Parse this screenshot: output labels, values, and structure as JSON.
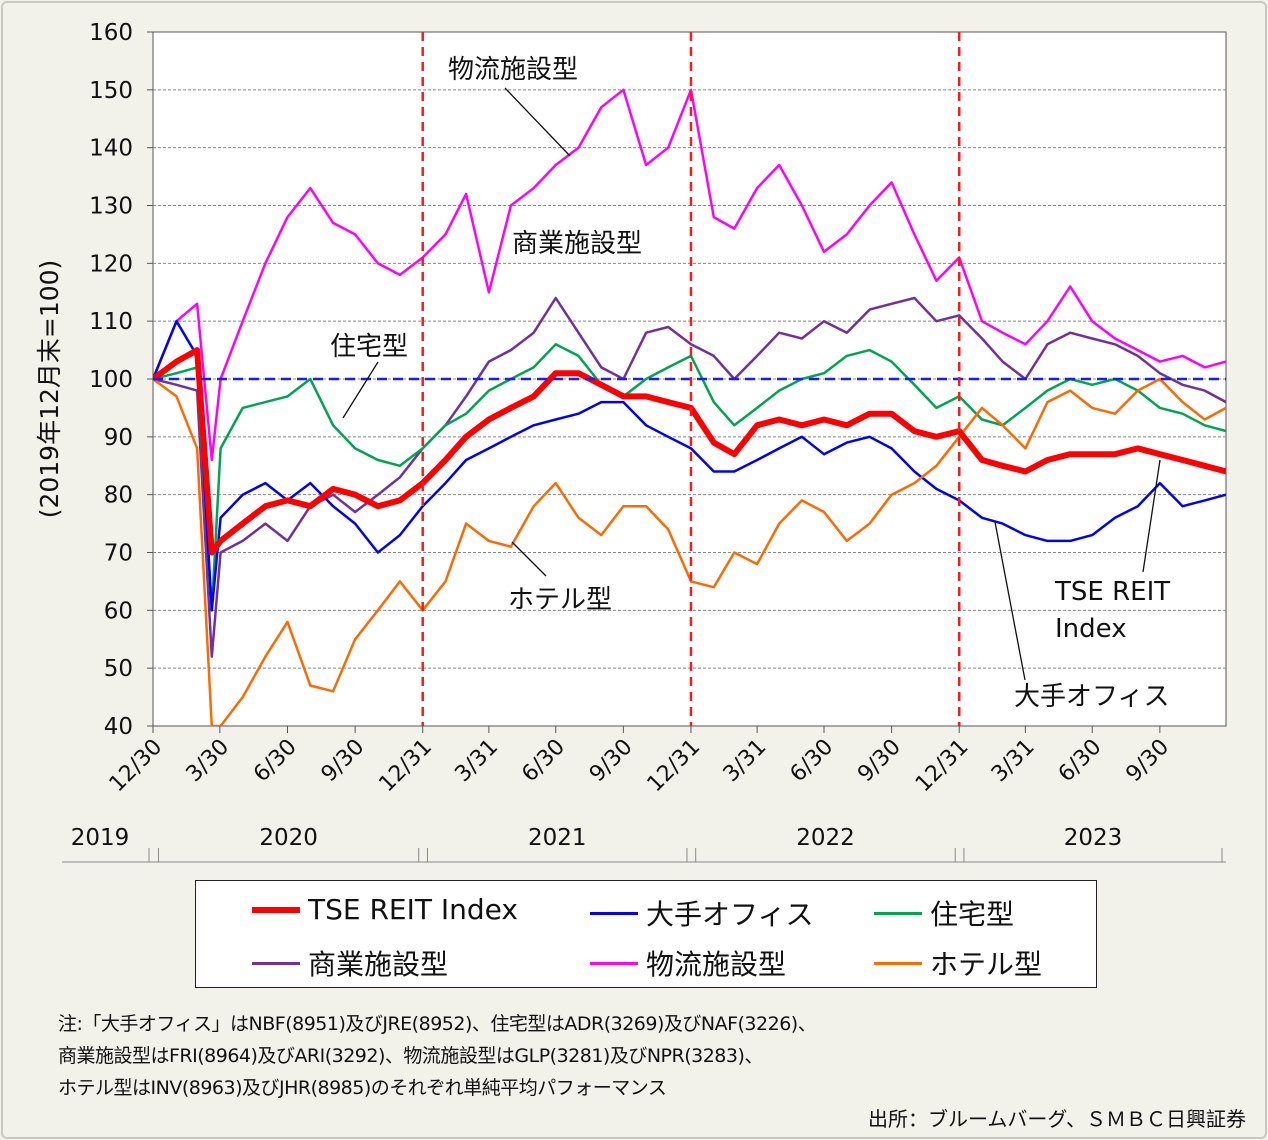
{
  "chart_data": {
    "type": "line",
    "ylabel": "(2019年12月末=100)",
    "ylim": [
      40,
      160
    ],
    "yticks": [
      40,
      50,
      60,
      70,
      80,
      90,
      100,
      110,
      120,
      130,
      140,
      150,
      160
    ],
    "xlim": [
      "2019-12-30",
      "2023-12-29"
    ],
    "xticks": [
      {
        "date": "2019-12-30",
        "label": "12/30"
      },
      {
        "date": "2020-03-30",
        "label": "3/30"
      },
      {
        "date": "2020-06-30",
        "label": "6/30"
      },
      {
        "date": "2020-09-30",
        "label": "9/30"
      },
      {
        "date": "2020-12-31",
        "label": "12/31"
      },
      {
        "date": "2021-03-31",
        "label": "3/31"
      },
      {
        "date": "2021-06-30",
        "label": "6/30"
      },
      {
        "date": "2021-09-30",
        "label": "9/30"
      },
      {
        "date": "2021-12-31",
        "label": "12/31"
      },
      {
        "date": "2022-03-31",
        "label": "3/31"
      },
      {
        "date": "2022-06-30",
        "label": "6/30"
      },
      {
        "date": "2022-09-30",
        "label": "9/30"
      },
      {
        "date": "2022-12-31",
        "label": "12/31"
      },
      {
        "date": "2023-03-31",
        "label": "3/31"
      },
      {
        "date": "2023-06-30",
        "label": "6/30"
      },
      {
        "date": "2023-09-30",
        "label": "9/30"
      }
    ],
    "years": [
      {
        "label": "2019",
        "from": "2019-12-01",
        "to": "2019-12-31"
      },
      {
        "label": "2020",
        "from": "2020-01-01",
        "to": "2020-12-31"
      },
      {
        "label": "2021",
        "from": "2021-01-01",
        "to": "2021-12-31"
      },
      {
        "label": "2022",
        "from": "2022-01-01",
        "to": "2022-12-31"
      },
      {
        "label": "2023",
        "from": "2023-01-01",
        "to": "2023-12-29"
      }
    ],
    "grid": true,
    "reference_line": {
      "value": 100,
      "color": "#1a1aff",
      "style": "dashed"
    },
    "year_dividers": [
      "2020-12-31",
      "2021-12-31",
      "2022-12-31"
    ],
    "divider_color": "#ff1a1a",
    "dates": [
      "2019-12-30",
      "2020-01-31",
      "2020-02-28",
      "2020-03-19",
      "2020-03-31",
      "2020-04-30",
      "2020-05-31",
      "2020-06-30",
      "2020-07-31",
      "2020-08-31",
      "2020-09-30",
      "2020-10-31",
      "2020-11-30",
      "2020-12-31",
      "2021-01-31",
      "2021-02-28",
      "2021-03-31",
      "2021-04-30",
      "2021-05-31",
      "2021-06-30",
      "2021-07-31",
      "2021-08-31",
      "2021-09-30",
      "2021-10-31",
      "2021-11-30",
      "2021-12-31",
      "2022-01-31",
      "2022-02-28",
      "2022-03-31",
      "2022-04-30",
      "2022-05-31",
      "2022-06-30",
      "2022-07-31",
      "2022-08-31",
      "2022-09-30",
      "2022-10-31",
      "2022-11-30",
      "2022-12-31",
      "2023-01-31",
      "2023-02-28",
      "2023-03-31",
      "2023-04-30",
      "2023-05-31",
      "2023-06-30",
      "2023-07-31",
      "2023-08-31",
      "2023-09-30",
      "2023-10-31",
      "2023-11-30",
      "2023-12-29"
    ],
    "series": [
      {
        "name": "物流施設型",
        "color": "#ff00ff",
        "width": 2.5,
        "values": [
          100,
          110,
          113,
          86,
          100,
          110,
          120,
          128,
          133,
          127,
          125,
          120,
          118,
          121,
          125,
          132,
          115,
          130,
          133,
          137,
          140,
          147,
          150,
          137,
          140,
          150,
          128,
          126,
          133,
          137,
          130,
          122,
          125,
          130,
          134,
          125,
          117,
          121,
          110,
          108,
          106,
          110,
          116,
          110,
          107,
          105,
          103,
          104,
          102,
          103
        ]
      },
      {
        "name": "商業施設型",
        "color": "#7030a0",
        "width": 2.5,
        "values": [
          100,
          99,
          98,
          52,
          70,
          72,
          75,
          72,
          78,
          80,
          77,
          80,
          83,
          88,
          92,
          97,
          103,
          105,
          108,
          114,
          108,
          102,
          100,
          108,
          109,
          106,
          104,
          100,
          104,
          108,
          107,
          110,
          108,
          112,
          113,
          114,
          110,
          111,
          107,
          103,
          100,
          106,
          108,
          107,
          106,
          104,
          101,
          99,
          98,
          96
        ]
      },
      {
        "name": "住宅型",
        "color": "#00a550",
        "width": 2.5,
        "values": [
          100,
          101,
          102,
          60,
          88,
          95,
          96,
          97,
          100,
          92,
          88,
          86,
          85,
          88,
          92,
          94,
          98,
          100,
          102,
          106,
          104,
          99,
          97,
          100,
          102,
          104,
          96,
          92,
          95,
          98,
          100,
          101,
          104,
          105,
          103,
          99,
          95,
          97,
          93,
          92,
          95,
          98,
          100,
          99,
          100,
          98,
          95,
          94,
          92,
          91
        ]
      },
      {
        "name": "大手オフィス",
        "color": "#0000ff",
        "width": 2.5,
        "values": [
          100,
          110,
          104,
          60,
          76,
          80,
          82,
          79,
          82,
          78,
          75,
          70,
          73,
          78,
          82,
          86,
          88,
          90,
          92,
          93,
          94,
          96,
          96,
          92,
          90,
          88,
          84,
          84,
          86,
          88,
          90,
          87,
          89,
          90,
          88,
          84,
          81,
          79,
          76,
          75,
          73,
          72,
          72,
          73,
          76,
          78,
          82,
          78,
          79,
          80
        ]
      },
      {
        "name": "ホテル型",
        "color": "#ff6a00",
        "width": 2.5,
        "values": [
          100,
          97,
          88,
          40,
          40,
          45,
          52,
          58,
          47,
          46,
          55,
          60,
          65,
          60,
          65,
          75,
          72,
          71,
          78,
          82,
          76,
          73,
          78,
          78,
          74,
          65,
          64,
          70,
          68,
          75,
          79,
          77,
          72,
          75,
          80,
          82,
          85,
          90,
          95,
          92,
          88,
          96,
          98,
          95,
          94,
          98,
          100,
          96,
          93,
          95
        ]
      },
      {
        "name": "TSE REIT Index",
        "color": "#ff0000",
        "width": 6,
        "values": [
          100,
          103,
          105,
          70,
          72,
          75,
          78,
          79,
          78,
          81,
          80,
          78,
          79,
          82,
          86,
          90,
          93,
          95,
          97,
          101,
          101,
          99,
          97,
          97,
          96,
          95,
          89,
          87,
          92,
          93,
          92,
          93,
          92,
          94,
          94,
          91,
          90,
          91,
          86,
          85,
          84,
          86,
          87,
          87,
          87,
          88,
          87,
          86,
          85,
          84
        ]
      }
    ],
    "annotations": [
      "物流施設型",
      "商業施設型",
      "住宅型",
      "ホテル型",
      "TSE REIT",
      "Index",
      "大手オフィス"
    ]
  },
  "legend": [
    {
      "label": "TSE REIT Index",
      "color": "#ff0000"
    },
    {
      "label": "大手オフィス",
      "color": "#0000ff"
    },
    {
      "label": "住宅型",
      "color": "#00a550"
    },
    {
      "label": "商業施設型",
      "color": "#7030a0"
    },
    {
      "label": "物流施設型",
      "color": "#ff00ff"
    },
    {
      "label": "ホテル型",
      "color": "#ff6a00"
    }
  ],
  "notes": [
    "注:「大手オフィス」はNBF(8951)及びJRE(8952)、住宅型はADR(3269)及びNAF(3226)、",
    "商業施設型はFRI(8964)及びARI(3292)、物流施設型はGLP(3281)及びNPR(3283)、",
    "ホテル型はINV(8963)及びJHR(8985)のそれぞれ単純平均パフォーマンス"
  ],
  "source": "出所：ブルームバーグ、ＳＭＢＣ日興証券"
}
